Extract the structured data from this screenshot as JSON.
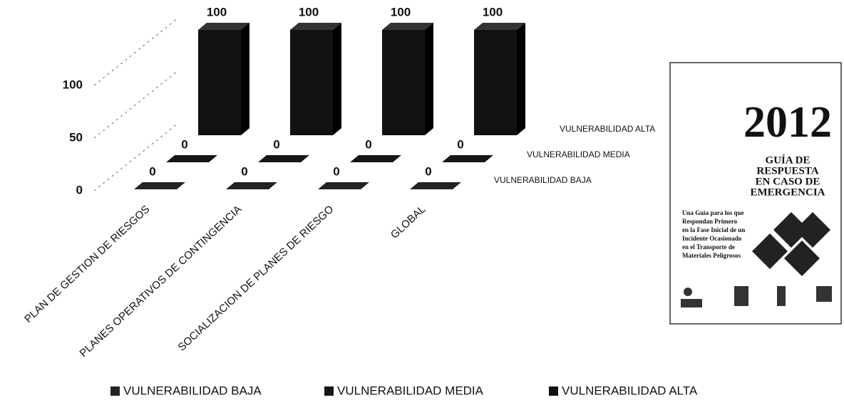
{
  "chart_data": {
    "type": "bar3d",
    "categories": [
      "PLAN DE GESTION DE RIESGOS",
      "PLANES OPERATIVOS DE CONTINGENCIA",
      "SOCIALIZACION DE PLANES DE RIESGO",
      "GLOBAL"
    ],
    "series": [
      {
        "name": "VULNERABILIDAD BAJA",
        "color": "#222222",
        "values": [
          0,
          0,
          0,
          0
        ]
      },
      {
        "name": "VULNERABILIDAD MEDIA",
        "color": "#161616",
        "values": [
          0,
          0,
          0,
          0
        ]
      },
      {
        "name": "VULNERABILIDAD ALTA",
        "color": "#111111",
        "values": [
          100,
          100,
          100,
          100
        ]
      }
    ],
    "ylim": [
      0,
      100
    ],
    "yticks": [
      0,
      50,
      100
    ],
    "grid": true,
    "legend": "bottom"
  },
  "cover": {
    "year": "2012",
    "title": [
      "GUÍA DE",
      "RESPUESTA",
      "EN CASO DE",
      "EMERGENCIA"
    ],
    "subtitle": [
      "Una Guía para los que",
      "Respondan Primero",
      "en la Fase Inicial de un",
      "Incidente Ocasionado",
      "en el Transporte de",
      "Materiales Peligrosos"
    ]
  }
}
